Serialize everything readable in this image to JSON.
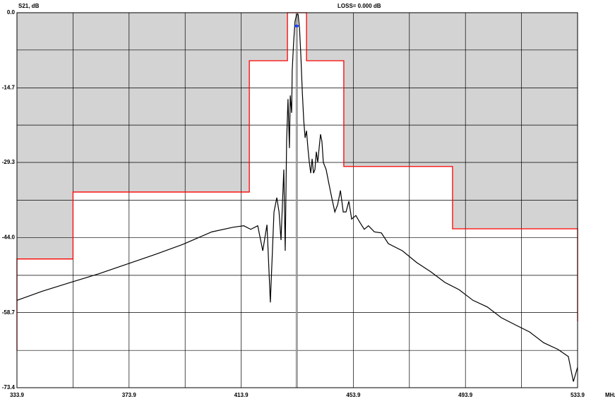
{
  "chart_data": {
    "type": "line",
    "y_label": "S21, dB",
    "loss_label": "LOSS=   0.000 dB",
    "x_unit": "MHz",
    "xlim": [
      333.9,
      533.9
    ],
    "ylim": [
      -73.4,
      0
    ],
    "xticks": [
      333.9,
      373.9,
      413.9,
      453.9,
      493.9,
      533.9
    ],
    "yticks": [
      {
        "value": 0,
        "label": "0.0"
      },
      -14.7,
      -29.3,
      {
        "value": -44,
        "label": "-44.0"
      },
      -58.7,
      -73.4
    ],
    "x_minor_grid": [
      353.9,
      393.9,
      433.9,
      473.9,
      513.9
    ],
    "y_minor_grid": [
      -7.3,
      -22.0,
      -36.7,
      -51.4,
      -66.1
    ],
    "grid": true,
    "mask": {
      "color": "#ff0000",
      "fill": "#d3d3d3",
      "x": [
        333.9,
        333.9,
        353.9,
        353.9,
        416.8,
        416.8,
        430.4,
        430.4,
        437.2,
        437.2,
        450.5,
        450.5,
        489.3,
        489.3,
        533.9,
        533.9
      ],
      "values": [
        -66.1,
        -48.2,
        -48.2,
        -35.1,
        -35.1,
        -9.4,
        -9.4,
        0,
        0,
        -9.4,
        -9.4,
        -30.1,
        -30.1,
        -42.3,
        -42.3,
        -60.4
      ]
    },
    "marker": {
      "x": 433.7,
      "y": -2.6,
      "color": "#2040ff",
      "line_color": "#999999"
    },
    "series": [
      {
        "color": "#000000",
        "x": [
          333.9,
          343.0,
          353.0,
          363.1,
          373.2,
          383.3,
          393.3,
          403.4,
          411.0,
          414.8,
          417.3,
          419.8,
          421.6,
          423.1,
          424.3,
          425.6,
          426.6,
          427.4,
          428.1,
          428.6,
          429.1,
          429.6,
          430.1,
          430.6,
          431.1,
          431.4,
          431.9,
          432.1,
          432.6,
          433.1,
          433.7,
          434.2,
          434.7,
          435.2,
          435.7,
          436.2,
          436.7,
          437.2,
          437.7,
          438.2,
          438.7,
          439.2,
          439.7,
          440.2,
          440.7,
          441.2,
          441.7,
          442.2,
          442.7,
          443.2,
          444.2,
          445.2,
          446.2,
          447.3,
          448.3,
          449.3,
          450.3,
          451.3,
          452.3,
          453.3,
          454.8,
          456.3,
          457.8,
          459.3,
          461.4,
          463.9,
          466.4,
          471.4,
          476.5,
          481.5,
          486.6,
          491.6,
          496.6,
          501.7,
          506.7,
          511.7,
          516.8,
          521.8,
          526.9,
          530.6,
          532.4,
          533.9
        ],
        "values": [
          -56.3,
          -54.5,
          -52.8,
          -51.1,
          -49.2,
          -47.3,
          -45.3,
          -42.9,
          -42.0,
          -41.7,
          -42.4,
          -41.7,
          -46.6,
          -41.5,
          -56.7,
          -39.0,
          -36.2,
          -39.0,
          -44.5,
          -37.6,
          -30.7,
          -46.6,
          -25.2,
          -16.9,
          -26.5,
          -16.2,
          -19.6,
          -11.3,
          -5.8,
          -1.7,
          -0.3,
          -0.3,
          -3.0,
          -8.6,
          -15.5,
          -21.0,
          -24.5,
          -23.1,
          -26.5,
          -29.3,
          -31.4,
          -28.6,
          -31.4,
          -30.7,
          -27.2,
          -29.3,
          -26.5,
          -23.8,
          -25.2,
          -29.3,
          -30.7,
          -33.5,
          -36.2,
          -39.0,
          -37.6,
          -34.8,
          -39.0,
          -39.0,
          -36.9,
          -40.4,
          -39.7,
          -41.1,
          -42.4,
          -41.7,
          -42.9,
          -43.1,
          -45.2,
          -46.6,
          -48.9,
          -50.7,
          -52.8,
          -54.2,
          -56.3,
          -57.6,
          -59.7,
          -61.1,
          -62.5,
          -64.6,
          -65.9,
          -67.3,
          -72.2,
          -69.4
        ]
      }
    ]
  }
}
